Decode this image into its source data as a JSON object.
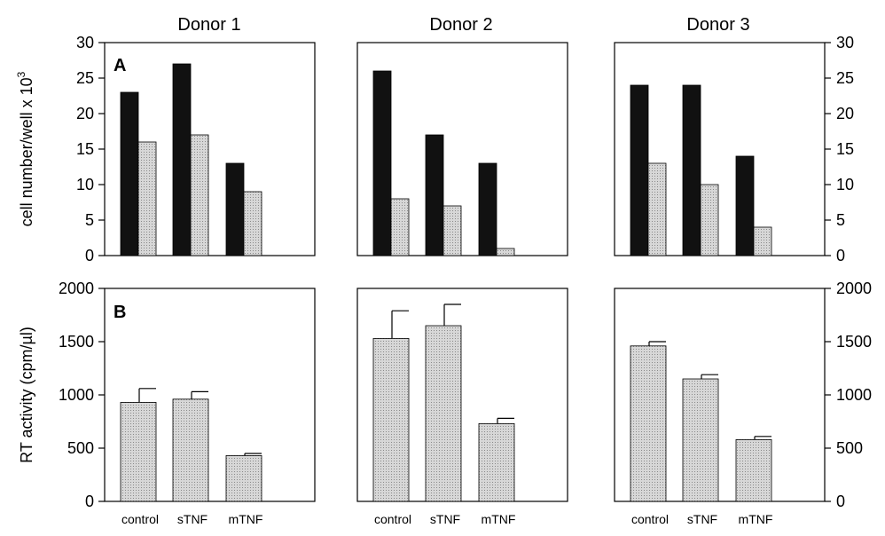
{
  "donors": [
    "Donor 1",
    "Donor 2",
    "Donor 3"
  ],
  "panel_labels": {
    "A": "A",
    "B": "B"
  },
  "colors": {
    "dark_bar": "#111111",
    "light_bar": "#d7d7d7",
    "light_bar_dots": "#8a8a8a"
  },
  "chart_data": [
    {
      "type": "bar",
      "panel": "A",
      "ylabel_main": "cell number/well x 10",
      "ylabel_exp": "3",
      "ylim": [
        0,
        30
      ],
      "yticks": [
        "0",
        "5",
        "10",
        "15",
        "20",
        "25",
        "30"
      ],
      "tick_values": [
        0,
        5,
        10,
        15,
        20,
        25,
        30
      ],
      "categories": [
        "control",
        "sTNF",
        "mTNF"
      ],
      "donors": [
        {
          "donor": "Donor 1",
          "series": [
            {
              "values": [
                23,
                27,
                13
              ]
            },
            {
              "values": [
                16,
                17,
                9
              ]
            }
          ]
        },
        {
          "donor": "Donor 2",
          "series": [
            {
              "values": [
                26,
                17,
                13
              ]
            },
            {
              "values": [
                8,
                7,
                1
              ]
            }
          ]
        },
        {
          "donor": "Donor 3",
          "series": [
            {
              "values": [
                24,
                24,
                14
              ]
            },
            {
              "values": [
                13,
                10,
                4
              ]
            }
          ]
        }
      ]
    },
    {
      "type": "bar",
      "panel": "B",
      "ylabel": "RT activity (cpm/µl)",
      "ylim": [
        0,
        2000
      ],
      "yticks": [
        "0",
        "500",
        "1000",
        "1500",
        "2000"
      ],
      "tick_values": [
        0,
        500,
        1000,
        1500,
        2000
      ],
      "categories": [
        "control",
        "sTNF",
        "mTNF"
      ],
      "donors": [
        {
          "donor": "Donor 1",
          "values": [
            930,
            960,
            430
          ],
          "errors": [
            130,
            70,
            20
          ]
        },
        {
          "donor": "Donor 2",
          "values": [
            1530,
            1650,
            730
          ],
          "errors": [
            260,
            200,
            50
          ]
        },
        {
          "donor": "Donor 3",
          "values": [
            1460,
            1150,
            580
          ],
          "errors": [
            40,
            40,
            30
          ]
        }
      ]
    }
  ]
}
